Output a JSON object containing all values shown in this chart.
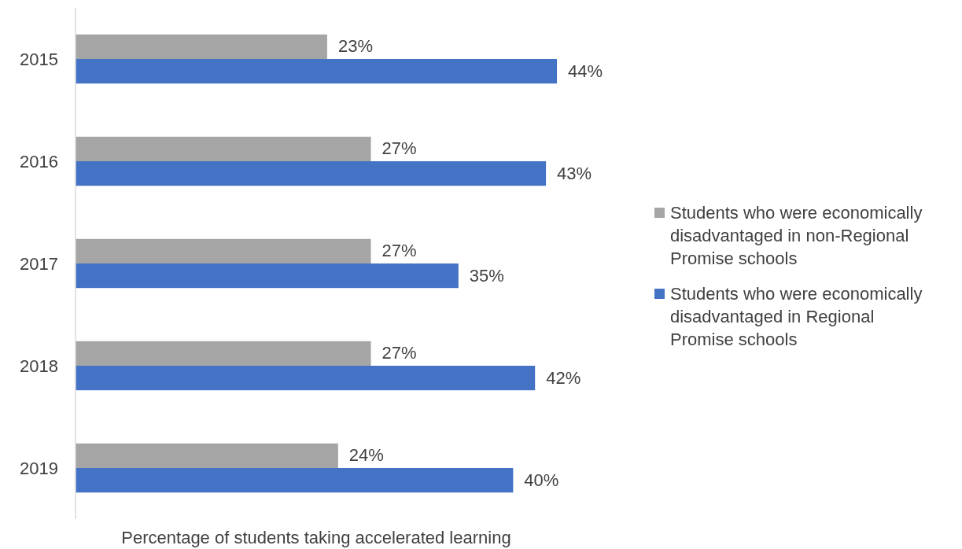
{
  "chart_data": {
    "type": "bar",
    "orientation": "horizontal",
    "xlabel": "Percentage of students taking accelerated learning",
    "categories": [
      "2015",
      "2016",
      "2017",
      "2018",
      "2019"
    ],
    "legend": "right",
    "series": [
      {
        "name": "Students who were economically disadvantaged in non-Regional Promise schools",
        "color": "#a5a5a5",
        "values": [
          23,
          27,
          27,
          27,
          24
        ],
        "value_labels": [
          "23%",
          "27%",
          "27%",
          "27%",
          "24%"
        ]
      },
      {
        "name": "Students who were economically disadvantaged in Regional Promise schools",
        "color": "#4472c4",
        "values": [
          44,
          43,
          35,
          42,
          40
        ],
        "value_labels": [
          "44%",
          "43%",
          "35%",
          "42%",
          "40%"
        ]
      }
    ]
  }
}
